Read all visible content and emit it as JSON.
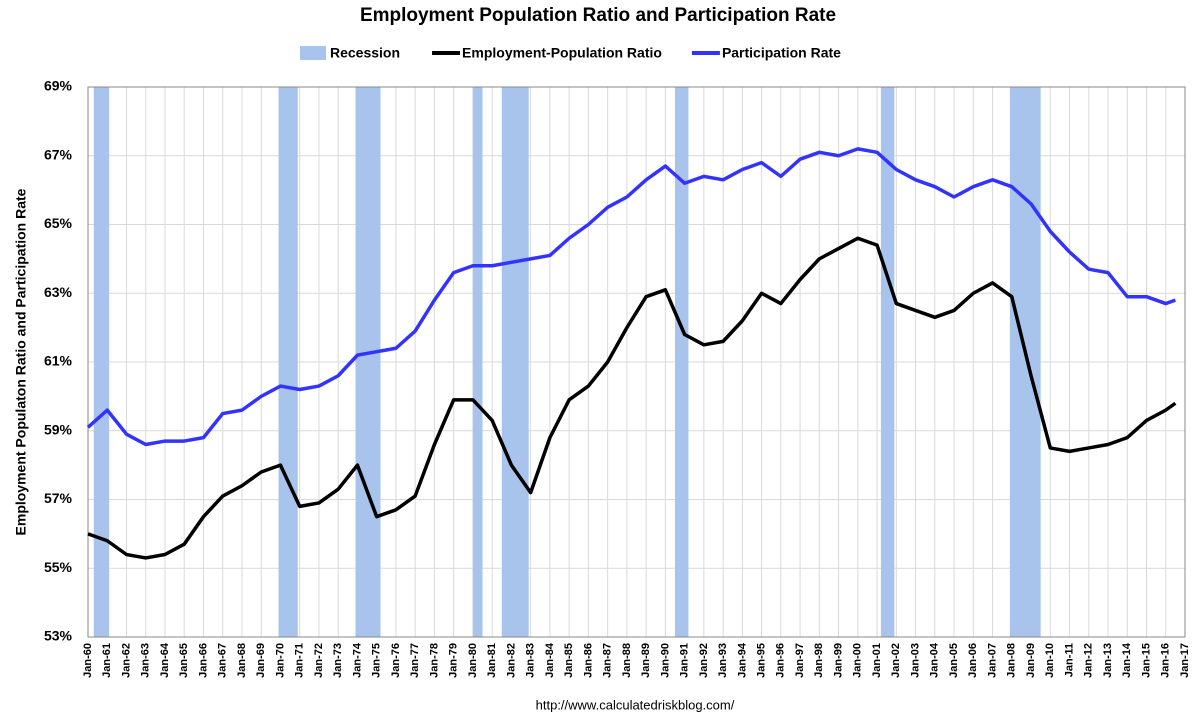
{
  "chart_data": {
    "type": "line",
    "title": "Employment Population Ratio and Participation Rate",
    "y_label": "Employment Populaton Ratio and Participation Rate",
    "source": "http://www.calculatedriskblog.com/",
    "recession_label": "Recession",
    "recession_color": "#a8c4ec",
    "recessions": [
      [
        1960.3,
        1961.1
      ],
      [
        1969.9,
        1970.9
      ],
      [
        1973.9,
        1975.2
      ],
      [
        1980.0,
        1980.5
      ],
      [
        1981.5,
        1982.9
      ],
      [
        1990.5,
        1991.2
      ],
      [
        2001.2,
        2001.9
      ],
      [
        2007.9,
        2009.5
      ]
    ],
    "x": [
      1960,
      1961,
      1962,
      1963,
      1964,
      1965,
      1966,
      1967,
      1968,
      1969,
      1970,
      1971,
      1972,
      1973,
      1974,
      1975,
      1976,
      1977,
      1978,
      1979,
      1980,
      1981,
      1982,
      1983,
      1984,
      1985,
      1986,
      1987,
      1988,
      1989,
      1990,
      1991,
      1992,
      1993,
      1994,
      1995,
      1996,
      1997,
      1998,
      1999,
      2000,
      2001,
      2002,
      2003,
      2004,
      2005,
      2006,
      2007,
      2008,
      2009,
      2010,
      2011,
      2012,
      2013,
      2014,
      2015,
      2016,
      2016.5
    ],
    "series": [
      {
        "name": "Employment-Population Ratio",
        "color": "#000000",
        "values": [
          56.0,
          55.8,
          55.4,
          55.3,
          55.4,
          55.7,
          56.5,
          57.1,
          57.4,
          57.8,
          58.0,
          56.8,
          56.9,
          57.3,
          58.0,
          56.5,
          56.7,
          57.1,
          58.6,
          59.9,
          59.9,
          59.3,
          58.0,
          57.2,
          58.8,
          59.9,
          60.3,
          61.0,
          62.0,
          62.9,
          63.1,
          61.8,
          61.5,
          61.6,
          62.2,
          63.0,
          62.7,
          63.4,
          64.0,
          64.3,
          64.6,
          64.4,
          62.7,
          62.5,
          62.3,
          62.5,
          63.0,
          63.3,
          62.9,
          60.6,
          58.5,
          58.4,
          58.5,
          58.6,
          58.8,
          59.3,
          59.6,
          59.8
        ]
      },
      {
        "name": "Participation Rate",
        "color": "#3333ff",
        "values": [
          59.1,
          59.6,
          58.9,
          58.6,
          58.7,
          58.7,
          58.8,
          59.5,
          59.6,
          60.0,
          60.3,
          60.2,
          60.3,
          60.6,
          61.2,
          61.3,
          61.4,
          61.9,
          62.8,
          63.6,
          63.8,
          63.8,
          63.9,
          64.0,
          64.1,
          64.6,
          65.0,
          65.5,
          65.8,
          66.3,
          66.7,
          66.2,
          66.4,
          66.3,
          66.6,
          66.8,
          66.4,
          66.9,
          67.1,
          67.0,
          67.2,
          67.1,
          66.6,
          66.3,
          66.1,
          65.8,
          66.1,
          66.3,
          66.1,
          65.6,
          64.8,
          64.2,
          63.7,
          63.6,
          62.9,
          62.9,
          62.7,
          62.8
        ]
      }
    ],
    "xlim": [
      1960,
      2017
    ],
    "xticks": [
      {
        "value": 1960,
        "label": "Jan-60"
      },
      {
        "value": 1961,
        "label": "Jan-61"
      },
      {
        "value": 1962,
        "label": "Jan-62"
      },
      {
        "value": 1963,
        "label": "Jan-63"
      },
      {
        "value": 1964,
        "label": "Jan-64"
      },
      {
        "value": 1965,
        "label": "Jan-65"
      },
      {
        "value": 1966,
        "label": "Jan-66"
      },
      {
        "value": 1967,
        "label": "Jan-67"
      },
      {
        "value": 1968,
        "label": "Jan-68"
      },
      {
        "value": 1969,
        "label": "Jan-69"
      },
      {
        "value": 1970,
        "label": "Jan-70"
      },
      {
        "value": 1971,
        "label": "Jan-71"
      },
      {
        "value": 1972,
        "label": "Jan-72"
      },
      {
        "value": 1973,
        "label": "Jan-73"
      },
      {
        "value": 1974,
        "label": "Jan-74"
      },
      {
        "value": 1975,
        "label": "Jan-75"
      },
      {
        "value": 1976,
        "label": "Jan-76"
      },
      {
        "value": 1977,
        "label": "Jan-77"
      },
      {
        "value": 1978,
        "label": "Jan-78"
      },
      {
        "value": 1979,
        "label": "Jan-79"
      },
      {
        "value": 1980,
        "label": "Jan-80"
      },
      {
        "value": 1981,
        "label": "Jan-81"
      },
      {
        "value": 1982,
        "label": "Jan-82"
      },
      {
        "value": 1983,
        "label": "Jan-83"
      },
      {
        "value": 1984,
        "label": "Jan-84"
      },
      {
        "value": 1985,
        "label": "Jan-85"
      },
      {
        "value": 1986,
        "label": "Jan-86"
      },
      {
        "value": 1987,
        "label": "Jan-87"
      },
      {
        "value": 1988,
        "label": "Jan-88"
      },
      {
        "value": 1989,
        "label": "Jan-89"
      },
      {
        "value": 1990,
        "label": "Jan-90"
      },
      {
        "value": 1991,
        "label": "Jan-91"
      },
      {
        "value": 1992,
        "label": "Jan-92"
      },
      {
        "value": 1993,
        "label": "Jan-93"
      },
      {
        "value": 1994,
        "label": "Jan-94"
      },
      {
        "value": 1995,
        "label": "Jan-95"
      },
      {
        "value": 1996,
        "label": "Jan-96"
      },
      {
        "value": 1997,
        "label": "Jan-97"
      },
      {
        "value": 1998,
        "label": "Jan-98"
      },
      {
        "value": 1999,
        "label": "Jan-99"
      },
      {
        "value": 2000,
        "label": "Jan-00"
      },
      {
        "value": 2001,
        "label": "Jan-01"
      },
      {
        "value": 2002,
        "label": "Jan-02"
      },
      {
        "value": 2003,
        "label": "Jan-03"
      },
      {
        "value": 2004,
        "label": "Jan-04"
      },
      {
        "value": 2005,
        "label": "Jan-05"
      },
      {
        "value": 2006,
        "label": "Jan-06"
      },
      {
        "value": 2007,
        "label": "Jan-07"
      },
      {
        "value": 2008,
        "label": "Jan-08"
      },
      {
        "value": 2009,
        "label": "Jan-09"
      },
      {
        "value": 2010,
        "label": "Jan-10"
      },
      {
        "value": 2011,
        "label": "Jan-11"
      },
      {
        "value": 2012,
        "label": "Jan-12"
      },
      {
        "value": 2013,
        "label": "Jan-13"
      },
      {
        "value": 2014,
        "label": "Jan-14"
      },
      {
        "value": 2015,
        "label": "Jan-15"
      },
      {
        "value": 2016,
        "label": "Jan-16"
      },
      {
        "value": 2017,
        "label": "Jan-17"
      }
    ],
    "ylim": [
      53,
      69
    ],
    "yticks": [
      {
        "value": 53,
        "label": "53%"
      },
      {
        "value": 55,
        "label": "55%"
      },
      {
        "value": 57,
        "label": "57%"
      },
      {
        "value": 59,
        "label": "59%"
      },
      {
        "value": 61,
        "label": "61%"
      },
      {
        "value": 63,
        "label": "63%"
      },
      {
        "value": 65,
        "label": "65%"
      },
      {
        "value": 67,
        "label": "67%"
      },
      {
        "value": 69,
        "label": "69%"
      }
    ],
    "grid": true
  }
}
